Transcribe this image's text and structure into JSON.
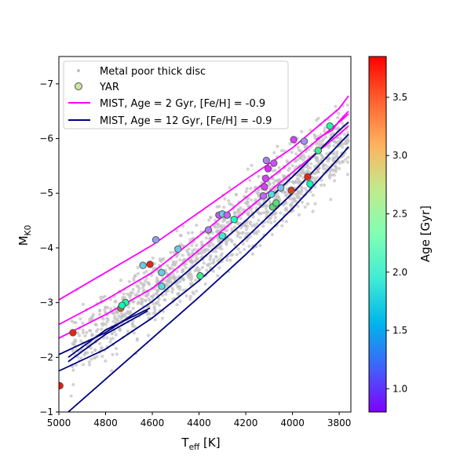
{
  "chart_data": {
    "type": "scatter",
    "xlabel": "T",
    "xlabel_sub": "eff",
    "xlabel_unit": " [K]",
    "ylabel": "M",
    "ylabel_sub": "K0",
    "xlim": [
      5000,
      3750
    ],
    "ylim": [
      -1,
      -7.5
    ],
    "x_ticks": [
      5000,
      4800,
      4600,
      4400,
      4200,
      4000,
      3800
    ],
    "y_ticks": [
      -1,
      -2,
      -3,
      -4,
      -5,
      -6,
      -7
    ],
    "y_tick_labels": [
      "−1",
      "−2",
      "−3",
      "−4",
      "−5",
      "−6",
      "−7"
    ],
    "grid": false,
    "legend_position": "top-left",
    "colorbar": {
      "label": "Age [Gyr]",
      "range": [
        0.8,
        3.85
      ],
      "ticks": [
        1.0,
        1.5,
        2.0,
        2.5,
        3.0,
        3.5
      ],
      "tick_labels": [
        "1.0",
        "1.5",
        "2.0",
        "2.5",
        "3.0",
        "3.5"
      ],
      "colormap": "rainbow"
    },
    "series": [
      {
        "name": "Metal poor thick disc",
        "kind": "scatter-background",
        "color": "#c0c0c0",
        "trend": {
          "teff": [
            4950,
            3760
          ],
          "mk": [
            -2.1,
            -6.0
          ]
        },
        "scatter_mag": 0.3,
        "count": 1400
      },
      {
        "name": "YAR",
        "kind": "scatter-colored",
        "points": [
          {
            "teff": 4996,
            "mk": -1.48,
            "age": 3.75
          },
          {
            "teff": 4940,
            "mk": -2.45,
            "age": 3.7
          },
          {
            "teff": 4735,
            "mk": -2.9,
            "age": 3.4
          },
          {
            "teff": 4715,
            "mk": -3.0,
            "age": 2.5
          },
          {
            "teff": 4730,
            "mk": -2.95,
            "age": 2.3
          },
          {
            "teff": 4640,
            "mk": -3.68,
            "age": 1.7
          },
          {
            "teff": 4610,
            "mk": -3.7,
            "age": 3.7
          },
          {
            "teff": 4585,
            "mk": -4.15,
            "age": 1.45
          },
          {
            "teff": 4560,
            "mk": -3.3,
            "age": 1.85
          },
          {
            "teff": 4560,
            "mk": -3.55,
            "age": 1.7
          },
          {
            "teff": 4490,
            "mk": -3.98,
            "age": 1.65
          },
          {
            "teff": 4395,
            "mk": -3.49,
            "age": 2.7
          },
          {
            "teff": 4360,
            "mk": -4.33,
            "age": 1.3
          },
          {
            "teff": 4315,
            "mk": -4.6,
            "age": 1.15
          },
          {
            "teff": 4300,
            "mk": -4.22,
            "age": 1.95
          },
          {
            "teff": 4300,
            "mk": -4.62,
            "age": 1.7
          },
          {
            "teff": 4280,
            "mk": -4.6,
            "age": 1.2
          },
          {
            "teff": 4250,
            "mk": -4.52,
            "age": 2.2
          },
          {
            "teff": 4125,
            "mk": -4.95,
            "age": 1.2
          },
          {
            "teff": 4120,
            "mk": -5.12,
            "age": 1.05
          },
          {
            "teff": 4115,
            "mk": -5.27,
            "age": 1.05
          },
          {
            "teff": 4112,
            "mk": -5.6,
            "age": 1.3
          },
          {
            "teff": 4105,
            "mk": -5.45,
            "age": 0.95
          },
          {
            "teff": 4080,
            "mk": -5.55,
            "age": 1.1
          },
          {
            "teff": 4090,
            "mk": -4.98,
            "age": 1.85
          },
          {
            "teff": 4085,
            "mk": -4.75,
            "age": 2.9
          },
          {
            "teff": 4070,
            "mk": -4.82,
            "age": 2.85
          },
          {
            "teff": 4050,
            "mk": -5.1,
            "age": 1.6
          },
          {
            "teff": 4005,
            "mk": -5.05,
            "age": 3.6
          },
          {
            "teff": 3995,
            "mk": -5.98,
            "age": 1.05
          },
          {
            "teff": 3950,
            "mk": -5.95,
            "age": 1.4
          },
          {
            "teff": 3935,
            "mk": -5.3,
            "age": 3.7
          },
          {
            "teff": 3925,
            "mk": -5.17,
            "age": 2.3
          },
          {
            "teff": 3890,
            "mk": -5.78,
            "age": 2.7
          },
          {
            "teff": 3840,
            "mk": -6.23,
            "age": 2.5
          }
        ]
      },
      {
        "name": "MIST, Age = 2 Gyr, [Fe/H] = -0.9",
        "kind": "isochrone",
        "color": "#ff00ff",
        "branches": [
          {
            "teff": [
              5000,
              4800,
              4600,
              4400,
              4200,
              4000,
              3800,
              3760
            ],
            "mk": [
              -2.35,
              -2.78,
              -3.26,
              -3.96,
              -4.68,
              -5.38,
              -6.08,
              -6.23
            ]
          },
          {
            "teff": [
              5000,
              4800,
              4600,
              4400,
              4200,
              4000,
              3800,
              3760
            ],
            "mk": [
              -2.6,
              -3.05,
              -3.55,
              -4.22,
              -4.92,
              -5.6,
              -6.3,
              -6.45
            ]
          },
          {
            "teff": [
              5000,
              4800,
              4600,
              4400,
              4200,
              4000,
              3800,
              3760
            ],
            "mk": [
              -3.05,
              -3.55,
              -4.05,
              -4.65,
              -5.25,
              -5.83,
              -6.55,
              -6.78
            ]
          },
          {
            "teff": [
              3900,
              3860,
              3830,
              3800,
              3760
            ],
            "mk": [
              -5.98,
              -6.08,
              -6.15,
              -6.32,
              -6.5
            ]
          }
        ]
      },
      {
        "name": "MIST, Age = 12 Gyr, [Fe/H] = -0.9",
        "kind": "isochrone",
        "color": "#000080",
        "branches": [
          {
            "teff": [
              4960,
              4800,
              4600,
              4400,
              4200,
              4000,
              3800,
              3760
            ],
            "mk": [
              -1.0,
              -1.6,
              -2.35,
              -3.1,
              -3.88,
              -4.72,
              -5.65,
              -5.85
            ]
          },
          {
            "teff": [
              5000,
              4800,
              4600,
              4400,
              4200,
              4000,
              3800,
              3760
            ],
            "mk": [
              -1.75,
              -2.15,
              -2.72,
              -3.4,
              -4.18,
              -5.0,
              -5.9,
              -6.08
            ]
          },
          {
            "teff": [
              5000,
              4800,
              4600,
              4400,
              4200,
              4000,
              3800,
              3760
            ],
            "mk": [
              -2.05,
              -2.45,
              -3.02,
              -3.75,
              -4.5,
              -5.3,
              -6.15,
              -6.3
            ]
          },
          {
            "teff": [
              4960,
              4800,
              4620
            ],
            "mk": [
              -1.92,
              -2.42,
              -2.85
            ]
          },
          {
            "teff": [
              4960,
              4800,
              4610
            ],
            "mk": [
              -2.0,
              -2.5,
              -2.9
            ]
          }
        ]
      }
    ]
  }
}
